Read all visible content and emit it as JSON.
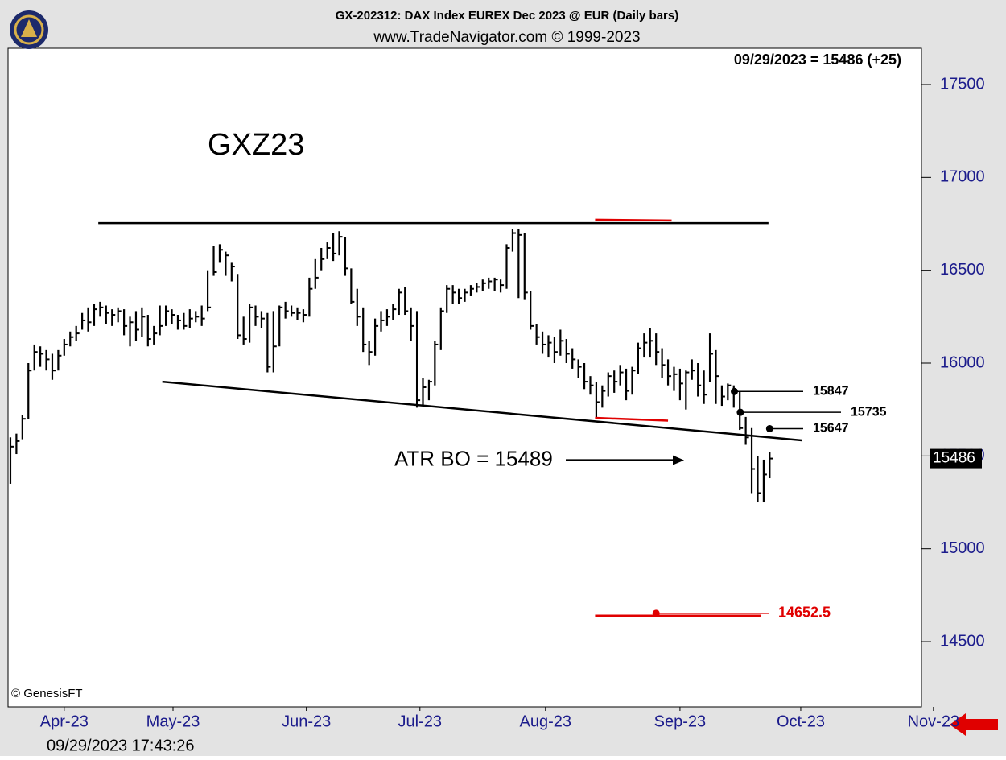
{
  "chart_data": {
    "type": "hlc",
    "title": "GX-202312:  DAX Index EUREX Dec 2023 @ EUR  (Daily bars)",
    "subtitle": "www.TradeNavigator.com © 1999-2023",
    "last_label": "09/29/2023 = 15486 (+25)",
    "symbol_label": "GXZ23",
    "copyright": "© GenesisFT",
    "timestamp": "09/29/2023 17:43:26",
    "atr_text": "ATR BO = 15489",
    "last_price": 15486,
    "color": "#000000",
    "ylim": [
      14149,
      17695
    ],
    "yticks": [
      14500,
      15000,
      15500,
      16000,
      16500,
      17000,
      17500
    ],
    "xlim": [
      -0.4,
      152.4
    ],
    "xticks": [
      {
        "value": 9.0,
        "label": "Apr-23"
      },
      {
        "value": 27.2,
        "label": "May-23"
      },
      {
        "value": 49.5,
        "label": "Jun-23"
      },
      {
        "value": 68.5,
        "label": "Jul-23"
      },
      {
        "value": 89.5,
        "label": "Aug-23"
      },
      {
        "value": 112.0,
        "label": "Sep-23"
      },
      {
        "value": 132.2,
        "label": "Oct-23"
      },
      {
        "value": 154.4,
        "label": "Nov-23"
      }
    ],
    "high": [
      15600,
      15620,
      15720,
      16000,
      16100,
      16090,
      16070,
      16050,
      16070,
      16130,
      16170,
      16200,
      16270,
      16300,
      16320,
      16330,
      16310,
      16290,
      16300,
      16290,
      16250,
      16280,
      16300,
      16260,
      16200,
      16310,
      16310,
      16290,
      16260,
      16270,
      16290,
      16280,
      16310,
      16500,
      16630,
      16640,
      16600,
      16540,
      16480,
      16250,
      16320,
      16310,
      16280,
      16270,
      16280,
      16310,
      16330,
      16310,
      16300,
      16290,
      16460,
      16560,
      16620,
      16650,
      16700,
      16710,
      16680,
      16510,
      16400,
      16300,
      16120,
      16240,
      16280,
      16290,
      16320,
      16400,
      16410,
      16300,
      16280,
      15920,
      15910,
      16120,
      16300,
      16420,
      16420,
      16400,
      16400,
      16420,
      16430,
      16450,
      16460,
      16460,
      16450,
      16640,
      16720,
      16720,
      16700,
      16390,
      16210,
      16170,
      16150,
      16140,
      16180,
      16130,
      16080,
      16020,
      16000,
      15930,
      15900,
      15880,
      15950,
      15960,
      15990,
      15970,
      15980,
      16110,
      16160,
      16190,
      16160,
      16080,
      16020,
      15980,
      15970,
      15960,
      16020,
      16000,
      15960,
      16160,
      16070,
      15880,
      15890,
      15880,
      15850,
      15710,
      15650,
      15500,
      15480,
      15520
    ],
    "low": [
      15350,
      15510,
      15590,
      15700,
      15960,
      15980,
      15960,
      15910,
      15960,
      16040,
      16090,
      16120,
      16180,
      16170,
      16200,
      16250,
      16210,
      16200,
      16220,
      16150,
      16090,
      16120,
      16140,
      16090,
      16100,
      16150,
      16200,
      16210,
      16180,
      16180,
      16190,
      16220,
      16200,
      16280,
      16470,
      16540,
      16470,
      16440,
      16130,
      16100,
      16110,
      16200,
      16190,
      15950,
      15950,
      16090,
      16240,
      16250,
      16230,
      16220,
      16250,
      16400,
      16500,
      16560,
      16550,
      16580,
      16470,
      16320,
      16200,
      16060,
      15990,
      16040,
      16170,
      16200,
      16230,
      16260,
      16260,
      16120,
      15760,
      15770,
      15800,
      15880,
      16070,
      16270,
      16320,
      16320,
      16330,
      16360,
      16380,
      16390,
      16400,
      16390,
      16380,
      16400,
      16600,
      16350,
      16340,
      16180,
      16100,
      16050,
      16030,
      16000,
      16040,
      16000,
      15970,
      15920,
      15860,
      15830,
      15700,
      15760,
      15820,
      15840,
      15880,
      15800,
      15830,
      15940,
      16030,
      16030,
      15990,
      15920,
      15880,
      15850,
      15800,
      15750,
      15910,
      15820,
      15780,
      15900,
      15780,
      15770,
      15800,
      15760,
      15640,
      15560,
      15300,
      15250,
      15250,
      15380
    ],
    "close": [
      15550,
      15580,
      15700,
      15960,
      16060,
      16050,
      16020,
      15960,
      16040,
      16100,
      16140,
      16160,
      16230,
      16220,
      16290,
      16300,
      16270,
      16260,
      16280,
      16200,
      16220,
      16180,
      16250,
      16130,
      16160,
      16200,
      16280,
      16260,
      16230,
      16200,
      16240,
      16250,
      16240,
      16300,
      16490,
      16610,
      16580,
      16520,
      16150,
      16130,
      16300,
      16250,
      16240,
      15980,
      16090,
      16300,
      16280,
      16270,
      16270,
      16260,
      16400,
      16460,
      16560,
      16620,
      16590,
      16680,
      16510,
      16330,
      16250,
      16100,
      16060,
      16200,
      16230,
      16250,
      16290,
      16380,
      16280,
      16200,
      15800,
      15870,
      15900,
      16100,
      16280,
      16400,
      16380,
      16350,
      16380,
      16400,
      16410,
      16430,
      16440,
      16450,
      16420,
      16620,
      16700,
      16690,
      16380,
      16200,
      16140,
      16100,
      16110,
      16060,
      16120,
      16050,
      16020,
      15980,
      15900,
      15880,
      15790,
      15850,
      15930,
      15900,
      15950,
      15850,
      15960,
      16080,
      16110,
      16120,
      16060,
      15990,
      15930,
      15940,
      15890,
      15950,
      15960,
      15880,
      15830,
      16050,
      15930,
      15820,
      15880,
      15840,
      15650,
      15600,
      15430,
      15300,
      15400,
      15486
    ],
    "lines": [
      {
        "x": [
          14.7,
          126.8
        ],
        "y": [
          16754,
          16754
        ],
        "color": "#000000"
      },
      {
        "x": [
          25.4,
          132.4
        ],
        "y": [
          15900,
          15584
        ],
        "color": "#000000"
      },
      {
        "x": [
          97.8,
          110.6
        ],
        "y": [
          16772,
          16768
        ],
        "color": "#e00000"
      },
      {
        "x": [
          97.8,
          110.0
        ],
        "y": [
          15705,
          15690
        ],
        "color": "#e00000"
      },
      {
        "x": [
          97.8,
          125.6
        ],
        "y": [
          14640,
          14640
        ],
        "color": "#e00000"
      }
    ],
    "levels": [
      {
        "x": 121.1,
        "value": 15847,
        "color": "#000000"
      },
      {
        "x": 122.1,
        "value": 15735,
        "color": "#000000"
      },
      {
        "x": 127.0,
        "value": 15647,
        "color": "#000000"
      },
      {
        "x": 108.0,
        "value": 14652.5,
        "color": "#e00000"
      }
    ]
  }
}
